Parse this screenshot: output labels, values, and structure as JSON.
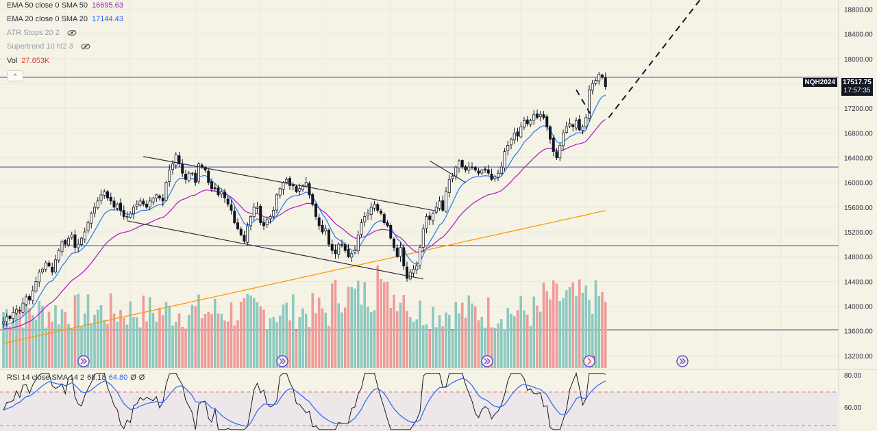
{
  "indicators": [
    {
      "name": "EMA 50 close 0 SMA 50",
      "value": "16695.63",
      "color": "#9c27b0"
    },
    {
      "name": "EMA 20 close 0 SMA 20",
      "value": "17144.43",
      "color": "#2962ff"
    },
    {
      "name": "ATR Stops 20 2",
      "value": "",
      "hidden": true
    },
    {
      "name": "Supertrend 10 hl2 3",
      "value": "",
      "hidden": true
    },
    {
      "name": "Vol",
      "value": "27.653K",
      "color": "#e53935"
    }
  ],
  "collapse_glyph": "^",
  "symbol_tag": "NQH2024",
  "last_price": "17517.75",
  "countdown": "17:57:35",
  "rsi": {
    "label": "RSI 14 close SMA 14 2",
    "v1": "68.18",
    "v2": "64.80",
    "v3": "Ø",
    "v4": "Ø",
    "y_ticks": [
      "80.00",
      "60.00"
    ]
  },
  "chart_data": {
    "type": "candlestick",
    "symbol": "NQH2024",
    "y_ticks": [
      "18800.00",
      "18400.00",
      "18000.00",
      "17600.00",
      "17200.00",
      "16800.00",
      "16400.00",
      "16000.00",
      "15600.00",
      "15200.00",
      "14800.00",
      "14400.00",
      "14000.00",
      "13600.00",
      "13200.00"
    ],
    "ylim": [
      13000,
      18950
    ],
    "horizontal_lines": [
      17700,
      16250,
      14980,
      13620
    ],
    "closes": [
      13750,
      13830,
      13800,
      13900,
      13950,
      13920,
      14050,
      14150,
      14100,
      14250,
      14400,
      14550,
      14600,
      14700,
      14650,
      14550,
      14750,
      14900,
      15050,
      15000,
      15100,
      15150,
      14950,
      15000,
      15100,
      15200,
      15350,
      15500,
      15600,
      15700,
      15800,
      15850,
      15750,
      15700,
      15600,
      15650,
      15550,
      15450,
      15450,
      15500,
      15600,
      15650,
      15700,
      15650,
      15600,
      15700,
      15750,
      15800,
      15750,
      15700,
      16000,
      16200,
      16300,
      16450,
      16300,
      16150,
      16050,
      16150,
      16150,
      16000,
      16300,
      16250,
      16200,
      16000,
      15900,
      15900,
      15800,
      15850,
      15750,
      15650,
      15550,
      15350,
      15250,
      15150,
      15050,
      15300,
      15450,
      15600,
      15600,
      15350,
      15300,
      15400,
      15450,
      15550,
      15800,
      15900,
      16000,
      16050,
      15950,
      15950,
      15850,
      15900,
      15950,
      16000,
      15800,
      15650,
      15450,
      15300,
      15200,
      15250,
      15000,
      14900,
      14850,
      15000,
      15000,
      14900,
      14800,
      14850,
      14900,
      15150,
      15350,
      15450,
      15500,
      15600,
      15650,
      15550,
      15500,
      15350,
      15300,
      15100,
      14950,
      14800,
      14950,
      14650,
      14450,
      14550,
      14600,
      14650,
      14950,
      15250,
      15450,
      15400,
      15500,
      15600,
      15700,
      15550,
      15850,
      16050,
      16100,
      16250,
      16350,
      16250,
      16200,
      16250,
      16250,
      16200,
      16150,
      16200,
      16200,
      16150,
      16050,
      16100,
      16150,
      16250,
      16500,
      16600,
      16700,
      16800,
      16750,
      16900,
      17000,
      16950,
      17000,
      17100,
      17050,
      17100,
      17050,
      16900,
      16700,
      16500,
      16400,
      16600,
      16800,
      16900,
      16950,
      16900,
      17000,
      16850,
      16900,
      17050,
      17500,
      17600,
      17650,
      17750,
      17700,
      17550
    ],
    "volume_scale": [
      0,
      1
    ],
    "series": [
      {
        "name": "EMA 20",
        "color": "#2962ff",
        "last": 17144.43
      },
      {
        "name": "EMA 50",
        "color": "#9c27b0",
        "last": 16695.63
      },
      {
        "name": "SMA 200",
        "color": "#ff9800"
      }
    ],
    "trend_channel": [
      {
        "from": [
          43,
          16420
        ],
        "to": [
          133,
          15540
        ]
      },
      {
        "from": [
          38,
          15380
        ],
        "to": [
          129,
          14440
        ]
      },
      {
        "from": [
          131,
          16350
        ],
        "to": [
          142,
          16000
        ]
      }
    ],
    "projection": [
      {
        "from": [
          176,
          17500
        ],
        "to": [
          181,
          17050
        ]
      },
      {
        "from": [
          186,
          17050
        ],
        "to": [
          214,
          18950
        ]
      }
    ]
  }
}
